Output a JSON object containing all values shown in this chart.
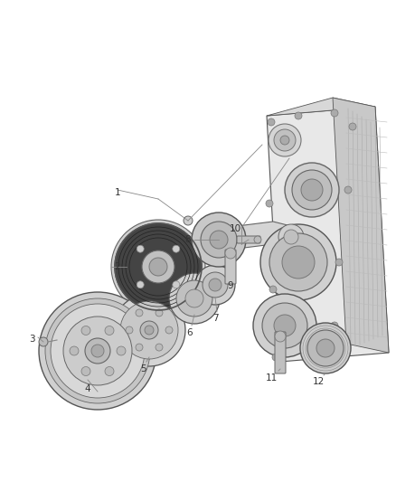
{
  "title": "",
  "background_color": "#ffffff",
  "fig_width": 4.38,
  "fig_height": 5.33,
  "dpi": 100,
  "line_color": "#555555",
  "label_fontsize": 7.5,
  "label_color": "#333333",
  "leader_color": "#888888"
}
